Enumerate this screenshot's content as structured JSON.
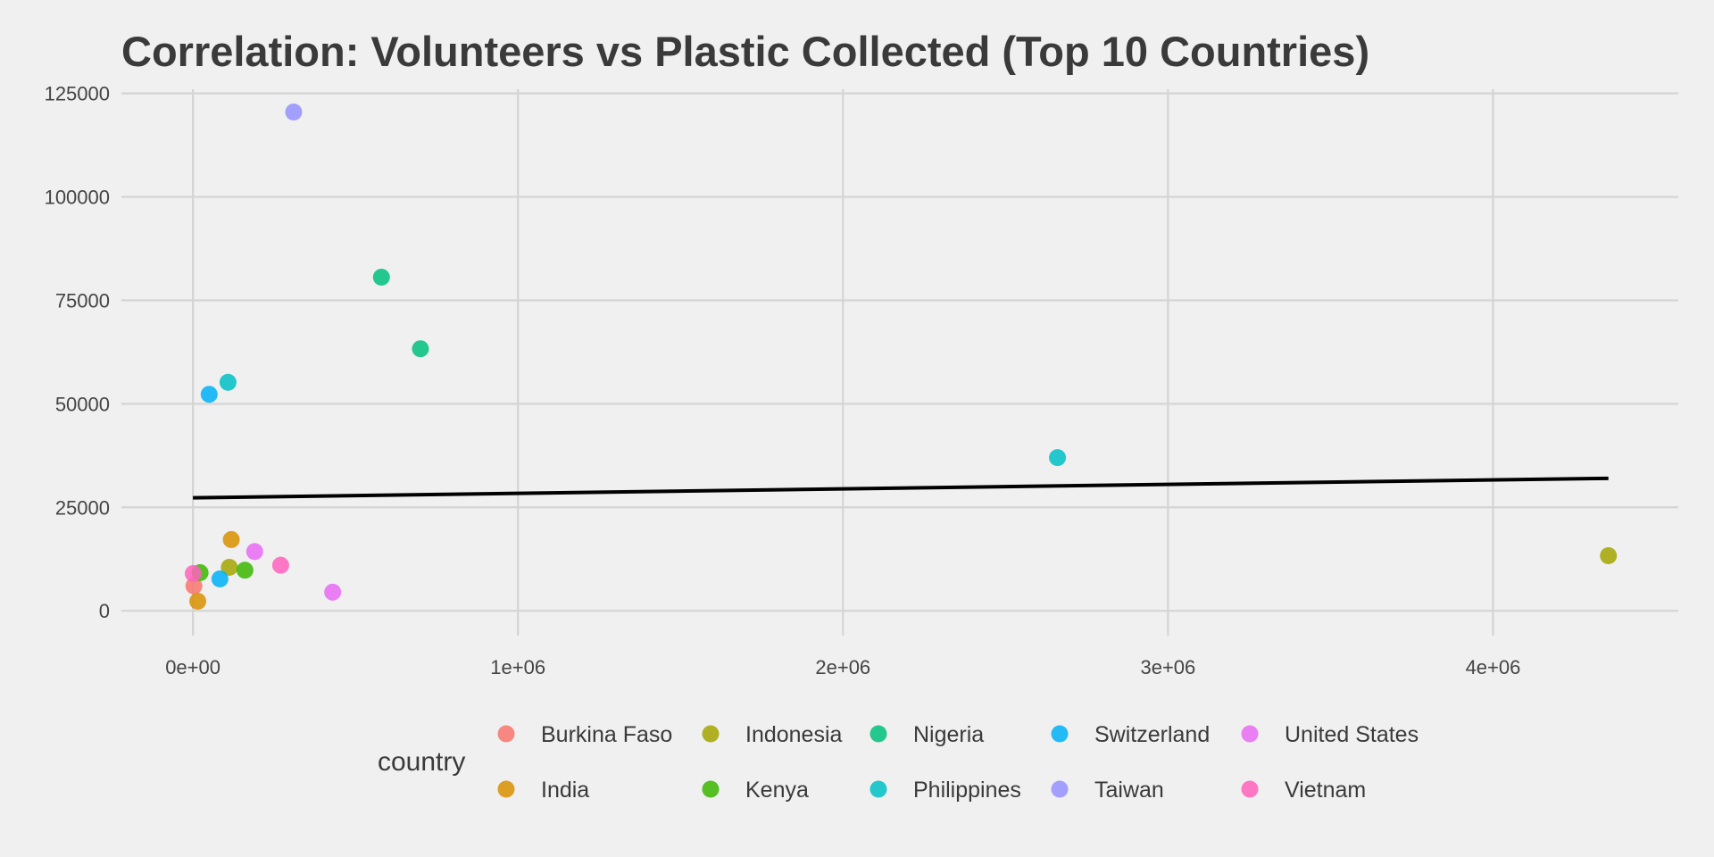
{
  "chart_data": {
    "type": "scatter",
    "title": "Correlation: Volunteers vs Plastic Collected (Top 10 Countries)",
    "xlabel": "",
    "ylabel": "",
    "xlim": [
      -220000,
      4570000
    ],
    "ylim": [
      -6000,
      126000
    ],
    "x_ticks": [
      0,
      1000000,
      2000000,
      3000000,
      4000000
    ],
    "x_tick_labels": [
      "0e+00",
      "1e+06",
      "2e+06",
      "3e+06",
      "4e+06"
    ],
    "y_ticks": [
      0,
      25000,
      50000,
      75000,
      100000,
      125000
    ],
    "y_tick_labels": [
      "0",
      "25000",
      "50000",
      "75000",
      "100000",
      "125000"
    ],
    "grid": true,
    "legend": {
      "title": "country",
      "placement": "bottom",
      "entries": [
        "Burkina Faso",
        "India",
        "Indonesia",
        "Kenya",
        "Nigeria",
        "Philippines",
        "Switzerland",
        "Taiwan",
        "United States",
        "Vietnam"
      ]
    },
    "series": [
      {
        "name": "Burkina Faso",
        "color": "#F8766D",
        "points": [
          [
            3000,
            6000
          ]
        ]
      },
      {
        "name": "India",
        "color": "#D89000",
        "points": [
          [
            118000,
            17200
          ],
          [
            15000,
            2300
          ]
        ]
      },
      {
        "name": "Indonesia",
        "color": "#A3A500",
        "points": [
          [
            4355000,
            13300
          ],
          [
            112000,
            10500
          ]
        ]
      },
      {
        "name": "Kenya",
        "color": "#39B600",
        "points": [
          [
            160000,
            9800
          ],
          [
            22000,
            9200
          ]
        ]
      },
      {
        "name": "Nigeria",
        "color": "#00BF7D",
        "points": [
          [
            580000,
            80600
          ],
          [
            700000,
            63300
          ]
        ]
      },
      {
        "name": "Philippines",
        "color": "#00BFC4",
        "points": [
          [
            108000,
            55200
          ],
          [
            2660000,
            37000
          ]
        ]
      },
      {
        "name": "Switzerland",
        "color": "#00B0F6",
        "points": [
          [
            50000,
            52300
          ],
          [
            83000,
            7700
          ]
        ]
      },
      {
        "name": "Taiwan",
        "color": "#9590FF",
        "points": [
          [
            310000,
            120500
          ]
        ]
      },
      {
        "name": "United States",
        "color": "#E76BF3",
        "points": [
          [
            190000,
            14300
          ],
          [
            430000,
            4500
          ]
        ]
      },
      {
        "name": "Vietnam",
        "color": "#FF62BC",
        "points": [
          [
            270000,
            11000
          ],
          [
            1000,
            9000
          ]
        ]
      }
    ],
    "trend_line": {
      "color": "#000000",
      "points": [
        [
          0,
          27300
        ],
        [
          4355000,
          32000
        ]
      ]
    }
  }
}
